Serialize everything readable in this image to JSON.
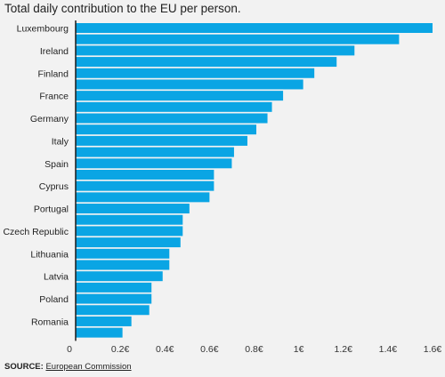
{
  "title": "Total daily contribution to the EU per person.",
  "source": {
    "label": "SOURCE:",
    "link_text": "European Commission"
  },
  "colors": {
    "bar": "#0aa5e4",
    "axis": "#1a1a1a",
    "background": "#f2f2f2"
  },
  "chart_data": {
    "type": "bar",
    "orientation": "horizontal",
    "xlim": [
      0,
      1.6
    ],
    "x_ticks": [
      {
        "value": 0,
        "label": "0"
      },
      {
        "value": 0.2,
        "label": "0.2€"
      },
      {
        "value": 0.4,
        "label": "0.4€"
      },
      {
        "value": 0.6,
        "label": "0.6€"
      },
      {
        "value": 0.8,
        "label": "0.8€"
      },
      {
        "value": 1.0,
        "label": "1€"
      },
      {
        "value": 1.2,
        "label": "1.2€"
      },
      {
        "value": 1.4,
        "label": "1.4€"
      },
      {
        "value": 1.6,
        "label": "1.6€"
      }
    ],
    "bars": [
      {
        "label": "Luxembourg",
        "value": 1.6
      },
      {
        "label": "",
        "value": 1.45
      },
      {
        "label": "Ireland",
        "value": 1.25
      },
      {
        "label": "",
        "value": 1.17
      },
      {
        "label": "Finland",
        "value": 1.07
      },
      {
        "label": "",
        "value": 1.02
      },
      {
        "label": "France",
        "value": 0.93
      },
      {
        "label": "",
        "value": 0.88
      },
      {
        "label": "Germany",
        "value": 0.86
      },
      {
        "label": "",
        "value": 0.81
      },
      {
        "label": "Italy",
        "value": 0.77
      },
      {
        "label": "",
        "value": 0.71
      },
      {
        "label": "Spain",
        "value": 0.7
      },
      {
        "label": "",
        "value": 0.62
      },
      {
        "label": "Cyprus",
        "value": 0.62
      },
      {
        "label": "",
        "value": 0.6
      },
      {
        "label": "Portugal",
        "value": 0.51
      },
      {
        "label": "",
        "value": 0.48
      },
      {
        "label": "Czech Republic",
        "value": 0.48
      },
      {
        "label": "",
        "value": 0.47
      },
      {
        "label": "Lithuania",
        "value": 0.42
      },
      {
        "label": "",
        "value": 0.42
      },
      {
        "label": "Latvia",
        "value": 0.39
      },
      {
        "label": "",
        "value": 0.34
      },
      {
        "label": "Poland",
        "value": 0.34
      },
      {
        "label": "",
        "value": 0.33
      },
      {
        "label": "Romania",
        "value": 0.25
      },
      {
        "label": "",
        "value": 0.21
      }
    ]
  }
}
